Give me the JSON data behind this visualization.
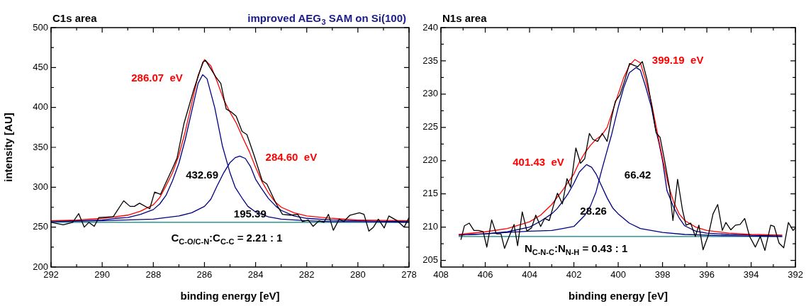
{
  "chart_data": [
    {
      "type": "line",
      "title": "C1s area",
      "subtitle": "improved AEG$_{3}$ SAM on Si(100)",
      "xlabel": "binding energy [eV]",
      "ylabel": "intensity [AU]",
      "marker": "none",
      "line_style": "solid",
      "xlim": [
        292,
        278
      ],
      "ylim": [
        200,
        500
      ],
      "xticks": [
        292,
        {
          "value": 291,
          "label": null
        },
        290,
        {
          "value": 289,
          "label": null
        },
        288,
        {
          "value": 287,
          "label": null
        },
        286,
        {
          "value": 285,
          "label": null
        },
        284,
        {
          "value": 283,
          "label": null
        },
        282,
        {
          "value": 281,
          "label": null
        },
        280,
        {
          "value": 279,
          "label": null
        },
        278
      ],
      "yticks": [
        200,
        {
          "value": 225,
          "label": null
        },
        250,
        {
          "value": 275,
          "label": null
        },
        300,
        {
          "value": 325,
          "label": null
        },
        350,
        {
          "value": 375,
          "label": null
        },
        400,
        {
          "value": 425,
          "label": null
        },
        450,
        {
          "value": 475,
          "label": null
        },
        500
      ],
      "series": [
        {
          "color": "#008080",
          "x": [
            292,
            278
          ],
          "values": [
            256,
            256
          ]
        },
        {
          "color": "#000080",
          "x": [
            292,
            291,
            290,
            289.5,
            289,
            288.5,
            288,
            287.75,
            287.5,
            287.25,
            287,
            286.75,
            286.5,
            286.25,
            286.07,
            285.9,
            285.6,
            285.3,
            285,
            284.8,
            284.5,
            284.3,
            284,
            283.5,
            283,
            282,
            281,
            280,
            278
          ],
          "values": [
            258,
            258,
            259,
            261,
            262,
            266,
            272,
            279,
            290,
            308,
            330,
            360,
            395,
            430,
            441,
            436,
            400,
            352,
            318,
            300,
            285,
            276,
            269,
            263,
            260,
            258,
            257,
            257,
            256
          ]
        },
        {
          "color": "#000080",
          "x": [
            292,
            290,
            288,
            287,
            286.5,
            286,
            285.75,
            285.5,
            285.25,
            285,
            284.8,
            284.62,
            284.4,
            284.2,
            284,
            283.8,
            283.5,
            283.2,
            283,
            282.5,
            282,
            281,
            280,
            278
          ],
          "values": [
            257,
            258,
            260,
            264,
            268,
            276,
            285,
            302,
            318,
            331,
            337,
            339,
            336,
            326,
            310,
            300,
            286,
            276,
            271,
            264,
            261,
            259,
            258,
            257
          ]
        },
        {
          "color": "#ff0000",
          "x": [
            292,
            291,
            290,
            289,
            288.5,
            288,
            287.75,
            287.5,
            287.25,
            287,
            286.75,
            286.5,
            286.25,
            286,
            285.75,
            285.5,
            285.25,
            285,
            284.75,
            284.5,
            284.25,
            284,
            283.75,
            283.5,
            283.25,
            283,
            282.5,
            282,
            281,
            280,
            278
          ],
          "values": [
            258,
            259,
            261,
            265,
            270,
            278,
            287,
            302,
            318,
            340,
            370,
            405,
            440,
            460,
            452,
            432,
            410,
            394,
            380,
            362,
            345,
            325,
            307,
            293,
            282,
            275,
            268,
            264,
            261,
            259,
            258
          ]
        },
        {
          "color": "#000000",
          "x": [
            292,
            291.52,
            291.15,
            290.92,
            290.7,
            290.52,
            290.31,
            290.13,
            289.57,
            289.16,
            288.91,
            288.74,
            288.54,
            288.14,
            287.95,
            287.72,
            287.26,
            287.07,
            286.8,
            286.43,
            286.06,
            285.96,
            285.55,
            285.36,
            285.15,
            284.94,
            284.76,
            284.53,
            284.34,
            284.06,
            283.74,
            283.56,
            283.19,
            282.95,
            282.63,
            282.35,
            282.17,
            281.94,
            281.75,
            281.52,
            281.33,
            281.15,
            280.96,
            280.73,
            280.55,
            280.31,
            279.94,
            279.76,
            279.57,
            279.39,
            279.2,
            278.97,
            278.79,
            278.46,
            278.19,
            278
          ],
          "values": [
            256,
            253,
            256,
            267,
            250,
            256,
            251,
            262,
            263,
            283,
            276,
            276,
            280,
            273,
            294,
            291,
            323,
            337,
            380,
            421,
            457,
            459,
            438,
            430,
            398,
            394,
            389,
            370,
            366,
            340,
            308,
            304,
            279,
            266,
            265,
            266,
            257,
            259,
            251,
            258,
            256,
            266,
            246,
            260,
            257,
            265,
            268,
            266,
            245,
            250,
            260,
            249,
            264,
            258,
            250,
            262
          ]
        }
      ],
      "annotations": [
        "286.07  eV",
        "284.60  eV",
        "432.69",
        "195.39",
        "C$_{C-O/C-N}$:C$_{C-C}$ = 2.21 : 1"
      ]
    },
    {
      "type": "line",
      "title": "N1s area",
      "xlabel": "binding energy [eV]",
      "marker": "none",
      "line_style": "solid",
      "xlim": [
        408,
        392
      ],
      "ylim": [
        204,
        240
      ],
      "xticks": [
        408,
        {
          "value": 407,
          "label": null
        },
        406,
        {
          "value": 405,
          "label": null
        },
        404,
        {
          "value": 403,
          "label": null
        },
        402,
        {
          "value": 401,
          "label": null
        },
        400,
        {
          "value": 399,
          "label": null
        },
        398,
        {
          "value": 397,
          "label": null
        },
        396,
        {
          "value": 395,
          "label": null
        },
        394,
        {
          "value": 393,
          "label": null
        },
        392
      ],
      "yticks": [
        205,
        {
          "value": 207.5,
          "label": null
        },
        210,
        {
          "value": 212.5,
          "label": null
        },
        215,
        {
          "value": 217.5,
          "label": null
        },
        220,
        {
          "value": 222.5,
          "label": null
        },
        225,
        {
          "value": 227.5,
          "label": null
        },
        230,
        {
          "value": 232.5,
          "label": null
        },
        235,
        {
          "value": 237.5,
          "label": null
        },
        240
      ],
      "series": [
        {
          "color": "#008080",
          "x": [
            407.2,
            392.6
          ],
          "values": [
            208.6,
            208.6
          ]
        },
        {
          "color": "#000080",
          "x": [
            407.2,
            406,
            405,
            404,
            403.5,
            403,
            402.75,
            402.5,
            402.25,
            402,
            401.75,
            401.43,
            401.2,
            401,
            400.75,
            400.5,
            400.25,
            400,
            399.5,
            399,
            398,
            397,
            395,
            392.6
          ],
          "values": [
            208.8,
            209,
            209.3,
            210,
            210.9,
            212,
            212.8,
            213.9,
            215.1,
            216.6,
            218.3,
            219.4,
            219,
            218,
            216.2,
            214.4,
            212.9,
            212,
            210.6,
            209.8,
            209.2,
            208.9,
            208.7,
            208.6
          ]
        },
        {
          "color": "#000080",
          "x": [
            407.2,
            406,
            405,
            404,
            403,
            402.5,
            402,
            401.5,
            401.25,
            401,
            400.75,
            400.5,
            400.29,
            400,
            399.75,
            399.5,
            399.19,
            399,
            398.75,
            398.5,
            398.33,
            398.15,
            398,
            397.8,
            397.5,
            397.25,
            397,
            396.5,
            396,
            395,
            393,
            392.6
          ],
          "values": [
            208.8,
            209,
            209.2,
            209.4,
            209.5,
            209.8,
            210.1,
            211.8,
            213.2,
            215.3,
            218.5,
            221.5,
            224,
            228,
            231,
            233.2,
            234,
            233.6,
            231,
            228,
            225,
            222.5,
            220,
            215.5,
            213,
            211.4,
            210.2,
            209.4,
            209.1,
            208.9,
            208.7,
            208.7
          ]
        },
        {
          "color": "#ff0000",
          "x": [
            407.2,
            406,
            405,
            404,
            403.5,
            403,
            402.5,
            402,
            401.75,
            401.5,
            401.25,
            401,
            400.75,
            400.5,
            400.25,
            400,
            399.75,
            399.5,
            399.25,
            399,
            398.75,
            398.5,
            398.25,
            398,
            397.75,
            397.5,
            397.25,
            397,
            396.5,
            396,
            395,
            394,
            392.6
          ],
          "values": [
            208.9,
            209.3,
            209.8,
            210.8,
            211.8,
            213.4,
            215.6,
            218,
            219.8,
            221.2,
            222.3,
            223.2,
            223.8,
            225,
            227.5,
            230,
            232.5,
            234.3,
            235.2,
            234.7,
            232,
            228.7,
            224.5,
            220.4,
            216.5,
            213.8,
            212,
            211,
            210,
            209.5,
            209.1,
            208.9,
            208.8
          ]
        },
        {
          "color": "#000000",
          "x": [
            407.1,
            406.94,
            406.72,
            406.51,
            406.3,
            406.09,
            405.93,
            405.71,
            405.5,
            405.29,
            405.13,
            404.92,
            404.7,
            404.54,
            404.33,
            404.12,
            403.91,
            403.72,
            403.5,
            403.32,
            403.11,
            402.9,
            402.74,
            402.52,
            402.31,
            402.15,
            401.91,
            401.7,
            401.51,
            401.3,
            401.14,
            400.93,
            400.72,
            400.5,
            400.31,
            400.13,
            399.92,
            399.71,
            399.49,
            399.12,
            398.91,
            398.7,
            398.48,
            398.29,
            398.11,
            397.9,
            397.69,
            397.53,
            397.32,
            397.1,
            396.94,
            396.73,
            396.52,
            396.36,
            396.17,
            395.93,
            395.72,
            395.51,
            395.3,
            395.14,
            394.92,
            394.71,
            394.5,
            394.29,
            394.07,
            393.81,
            393.59,
            393.38,
            393.12,
            392.96,
            392.74,
            392.53,
            392.32,
            392.11,
            392
          ],
          "values": [
            208.1,
            210.2,
            210.6,
            209.5,
            209.5,
            209.3,
            207,
            211.1,
            209,
            209,
            206.8,
            208.6,
            210.4,
            207.2,
            212.3,
            209.4,
            209.9,
            211.8,
            210.1,
            211.3,
            211,
            213.5,
            215.1,
            213.5,
            217.3,
            216,
            221.9,
            219.6,
            220.3,
            224.1,
            223.2,
            222.9,
            224.1,
            222.9,
            226.3,
            228.9,
            229.9,
            232,
            234.6,
            234.1,
            234.9,
            232.2,
            228.1,
            224.2,
            223.5,
            219.9,
            216,
            211,
            217.2,
            212.6,
            210.3,
            210.6,
            208.6,
            210.3,
            206.6,
            208.8,
            212,
            213.4,
            209.5,
            210.7,
            209.6,
            210.3,
            210.4,
            211.3,
            208.6,
            207,
            208.6,
            206.5,
            210.3,
            210.1,
            207.6,
            206.9,
            210.7,
            209.5,
            209.9
          ]
        }
      ],
      "annotations": [
        "399.19  eV",
        "401.43  eV",
        "66.42",
        "28.26",
        "N$_{C-N-C}$:N$_{N-H}$ = 0.43 : 1"
      ]
    }
  ]
}
